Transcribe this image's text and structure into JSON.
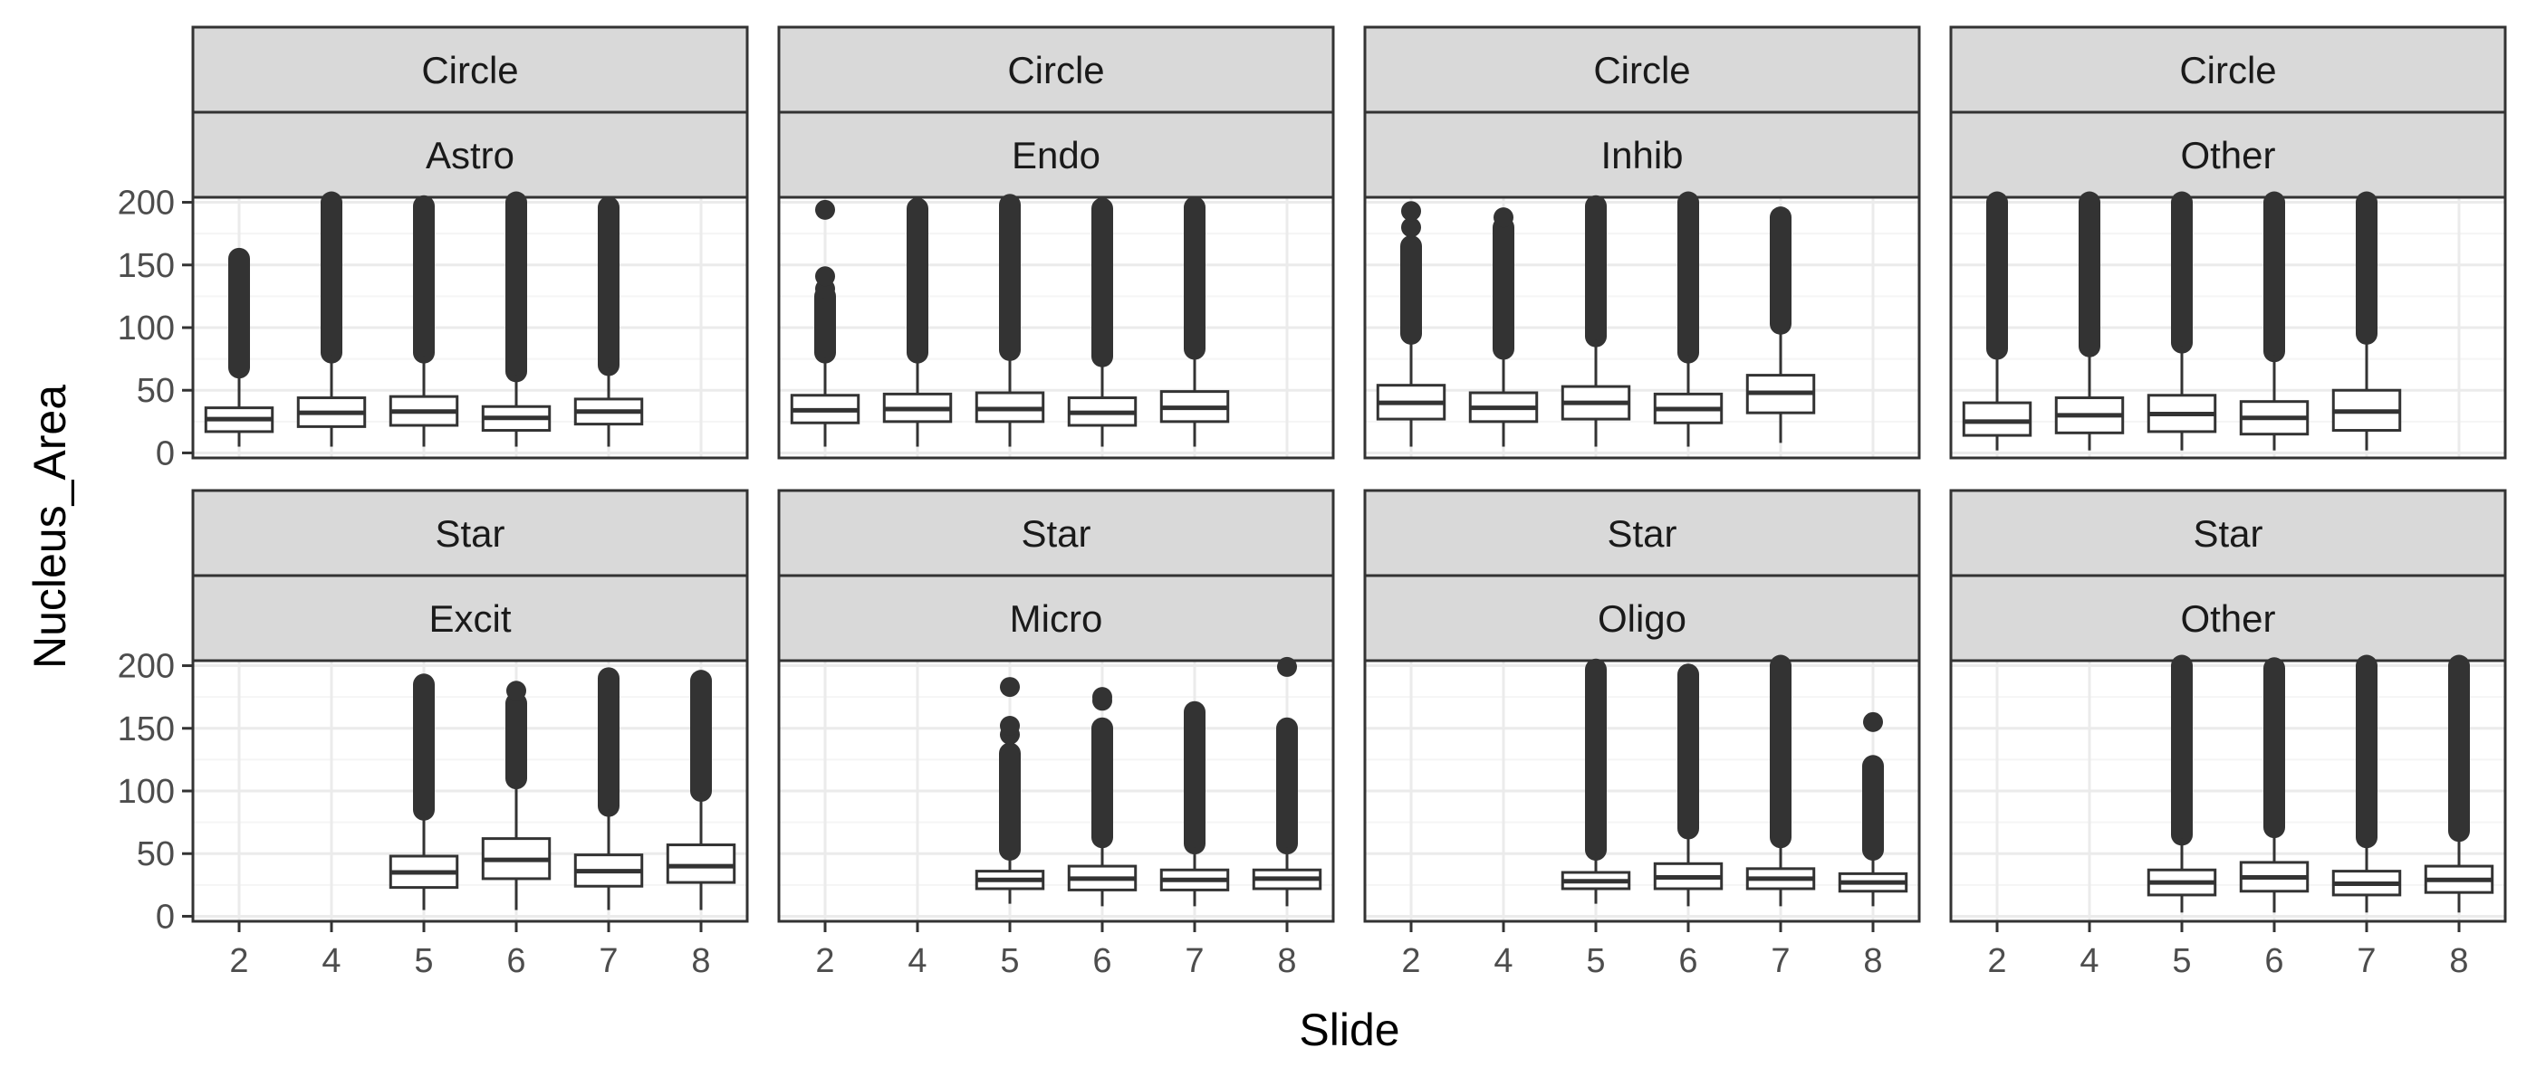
{
  "chart_data": {
    "type": "boxplot",
    "facet_rows": [
      "Circle",
      "Star"
    ],
    "xlabel": "Slide",
    "ylabel": "Nucleus_Area",
    "x_categories": [
      "2",
      "4",
      "5",
      "6",
      "7",
      "8"
    ],
    "y_ticks": [
      0,
      50,
      100,
      150,
      200
    ],
    "ylim": [
      -4,
      204
    ],
    "grid": true,
    "theme": "bw",
    "colors": {
      "strip_fill": "#d9d9d9",
      "panel_border": "#333333",
      "grid_major": "#ebebeb",
      "grid_minor": "#f5f5f5",
      "box_line": "#333333",
      "outlier": "#333333"
    },
    "panels": [
      {
        "row_label": "Circle",
        "col_label": "Astro",
        "boxes": [
          {
            "slide": "2",
            "q1": 17,
            "median": 27,
            "q3": 36,
            "whisker_low": 5,
            "whisker_high": 65,
            "outlier_min": 68,
            "outlier_max": 155,
            "sparse_outliers": []
          },
          {
            "slide": "4",
            "q1": 21,
            "median": 32,
            "q3": 44,
            "whisker_low": 5,
            "whisker_high": 78,
            "outlier_min": 80,
            "outlier_max": 200,
            "sparse_outliers": []
          },
          {
            "slide": "5",
            "q1": 22,
            "median": 33,
            "q3": 45,
            "whisker_low": 5,
            "whisker_high": 77,
            "outlier_min": 80,
            "outlier_max": 197,
            "sparse_outliers": []
          },
          {
            "slide": "6",
            "q1": 18,
            "median": 28,
            "q3": 37,
            "whisker_low": 5,
            "whisker_high": 62,
            "outlier_min": 65,
            "outlier_max": 200,
            "sparse_outliers": []
          },
          {
            "slide": "7",
            "q1": 23,
            "median": 33,
            "q3": 43,
            "whisker_low": 5,
            "whisker_high": 68,
            "outlier_min": 70,
            "outlier_max": 196,
            "sparse_outliers": []
          }
        ]
      },
      {
        "row_label": "Circle",
        "col_label": "Endo",
        "boxes": [
          {
            "slide": "2",
            "q1": 24,
            "median": 34,
            "q3": 46,
            "whisker_low": 5,
            "whisker_high": 76,
            "outlier_min": 80,
            "outlier_max": 125,
            "sparse_outliers": [
              131,
              141,
              194
            ]
          },
          {
            "slide": "4",
            "q1": 25,
            "median": 35,
            "q3": 47,
            "whisker_low": 5,
            "whisker_high": 78,
            "outlier_min": 80,
            "outlier_max": 195,
            "sparse_outliers": []
          },
          {
            "slide": "5",
            "q1": 25,
            "median": 35,
            "q3": 48,
            "whisker_low": 5,
            "whisker_high": 79,
            "outlier_min": 82,
            "outlier_max": 198,
            "sparse_outliers": []
          },
          {
            "slide": "6",
            "q1": 22,
            "median": 32,
            "q3": 44,
            "whisker_low": 5,
            "whisker_high": 74,
            "outlier_min": 77,
            "outlier_max": 195,
            "sparse_outliers": []
          },
          {
            "slide": "7",
            "q1": 25,
            "median": 36,
            "q3": 49,
            "whisker_low": 5,
            "whisker_high": 80,
            "outlier_min": 83,
            "outlier_max": 196,
            "sparse_outliers": []
          }
        ]
      },
      {
        "row_label": "Circle",
        "col_label": "Inhib",
        "boxes": [
          {
            "slide": "2",
            "q1": 27,
            "median": 40,
            "q3": 54,
            "whisker_low": 5,
            "whisker_high": 92,
            "outlier_min": 95,
            "outlier_max": 165,
            "sparse_outliers": [
              180,
              193
            ]
          },
          {
            "slide": "4",
            "q1": 25,
            "median": 36,
            "q3": 48,
            "whisker_low": 5,
            "whisker_high": 80,
            "outlier_min": 83,
            "outlier_max": 180,
            "sparse_outliers": [
              188
            ]
          },
          {
            "slide": "5",
            "q1": 27,
            "median": 40,
            "q3": 53,
            "whisker_low": 5,
            "whisker_high": 90,
            "outlier_min": 93,
            "outlier_max": 197,
            "sparse_outliers": []
          },
          {
            "slide": "6",
            "q1": 24,
            "median": 35,
            "q3": 47,
            "whisker_low": 5,
            "whisker_high": 78,
            "outlier_min": 80,
            "outlier_max": 200,
            "sparse_outliers": []
          },
          {
            "slide": "7",
            "q1": 32,
            "median": 48,
            "q3": 62,
            "whisker_low": 8,
            "whisker_high": 100,
            "outlier_min": 103,
            "outlier_max": 188,
            "sparse_outliers": []
          }
        ]
      },
      {
        "row_label": "Circle",
        "col_label": "Other",
        "boxes": [
          {
            "slide": "2",
            "q1": 14,
            "median": 25,
            "q3": 40,
            "whisker_low": 2,
            "whisker_high": 80,
            "outlier_min": 83,
            "outlier_max": 200,
            "sparse_outliers": []
          },
          {
            "slide": "4",
            "q1": 16,
            "median": 30,
            "q3": 44,
            "whisker_low": 2,
            "whisker_high": 82,
            "outlier_min": 85,
            "outlier_max": 200,
            "sparse_outliers": []
          },
          {
            "slide": "5",
            "q1": 17,
            "median": 31,
            "q3": 46,
            "whisker_low": 2,
            "whisker_high": 85,
            "outlier_min": 88,
            "outlier_max": 200,
            "sparse_outliers": []
          },
          {
            "slide": "6",
            "q1": 15,
            "median": 28,
            "q3": 41,
            "whisker_low": 2,
            "whisker_high": 78,
            "outlier_min": 81,
            "outlier_max": 200,
            "sparse_outliers": []
          },
          {
            "slide": "7",
            "q1": 18,
            "median": 33,
            "q3": 50,
            "whisker_low": 2,
            "whisker_high": 92,
            "outlier_min": 95,
            "outlier_max": 200,
            "sparse_outliers": []
          }
        ]
      },
      {
        "row_label": "Star",
        "col_label": "Excit",
        "boxes": [
          {
            "slide": "5",
            "q1": 23,
            "median": 35,
            "q3": 48,
            "whisker_low": 5,
            "whisker_high": 82,
            "outlier_min": 85,
            "outlier_max": 185,
            "sparse_outliers": []
          },
          {
            "slide": "6",
            "q1": 30,
            "median": 45,
            "q3": 62,
            "whisker_low": 5,
            "whisker_high": 108,
            "outlier_min": 110,
            "outlier_max": 170,
            "sparse_outliers": [
              180
            ]
          },
          {
            "slide": "7",
            "q1": 24,
            "median": 36,
            "q3": 49,
            "whisker_low": 5,
            "whisker_high": 85,
            "outlier_min": 88,
            "outlier_max": 190,
            "sparse_outliers": []
          },
          {
            "slide": "8",
            "q1": 27,
            "median": 40,
            "q3": 57,
            "whisker_low": 5,
            "whisker_high": 98,
            "outlier_min": 100,
            "outlier_max": 188,
            "sparse_outliers": []
          }
        ]
      },
      {
        "row_label": "Star",
        "col_label": "Micro",
        "boxes": [
          {
            "slide": "5",
            "q1": 22,
            "median": 29,
            "q3": 36,
            "whisker_low": 10,
            "whisker_high": 50,
            "outlier_min": 53,
            "outlier_max": 130,
            "sparse_outliers": [
              145,
              152,
              183
            ]
          },
          {
            "slide": "6",
            "q1": 21,
            "median": 30,
            "q3": 40,
            "whisker_low": 8,
            "whisker_high": 60,
            "outlier_min": 63,
            "outlier_max": 150,
            "sparse_outliers": [
              172,
              175
            ]
          },
          {
            "slide": "7",
            "q1": 21,
            "median": 29,
            "q3": 37,
            "whisker_low": 8,
            "whisker_high": 55,
            "outlier_min": 58,
            "outlier_max": 163,
            "sparse_outliers": []
          },
          {
            "slide": "8",
            "q1": 22,
            "median": 30,
            "q3": 37,
            "whisker_low": 8,
            "whisker_high": 55,
            "outlier_min": 58,
            "outlier_max": 150,
            "sparse_outliers": [
              199
            ]
          }
        ]
      },
      {
        "row_label": "Star",
        "col_label": "Oligo",
        "boxes": [
          {
            "slide": "5",
            "q1": 22,
            "median": 28,
            "q3": 35,
            "whisker_low": 10,
            "whisker_high": 50,
            "outlier_min": 53,
            "outlier_max": 197,
            "sparse_outliers": []
          },
          {
            "slide": "6",
            "q1": 22,
            "median": 31,
            "q3": 42,
            "whisker_low": 8,
            "whisker_high": 67,
            "outlier_min": 70,
            "outlier_max": 193,
            "sparse_outliers": []
          },
          {
            "slide": "7",
            "q1": 22,
            "median": 30,
            "q3": 38,
            "whisker_low": 8,
            "whisker_high": 60,
            "outlier_min": 63,
            "outlier_max": 200,
            "sparse_outliers": []
          },
          {
            "slide": "8",
            "q1": 20,
            "median": 27,
            "q3": 34,
            "whisker_low": 8,
            "whisker_high": 50,
            "outlier_min": 53,
            "outlier_max": 120,
            "sparse_outliers": [
              155
            ]
          }
        ]
      },
      {
        "row_label": "Star",
        "col_label": "Other",
        "boxes": [
          {
            "slide": "5",
            "q1": 17,
            "median": 27,
            "q3": 37,
            "whisker_low": 3,
            "whisker_high": 62,
            "outlier_min": 65,
            "outlier_max": 200,
            "sparse_outliers": []
          },
          {
            "slide": "6",
            "q1": 20,
            "median": 31,
            "q3": 43,
            "whisker_low": 3,
            "whisker_high": 68,
            "outlier_min": 71,
            "outlier_max": 198,
            "sparse_outliers": []
          },
          {
            "slide": "7",
            "q1": 17,
            "median": 26,
            "q3": 36,
            "whisker_low": 3,
            "whisker_high": 60,
            "outlier_min": 63,
            "outlier_max": 200,
            "sparse_outliers": []
          },
          {
            "slide": "8",
            "q1": 19,
            "median": 29,
            "q3": 40,
            "whisker_low": 3,
            "whisker_high": 65,
            "outlier_min": 68,
            "outlier_max": 200,
            "sparse_outliers": []
          }
        ]
      }
    ]
  }
}
